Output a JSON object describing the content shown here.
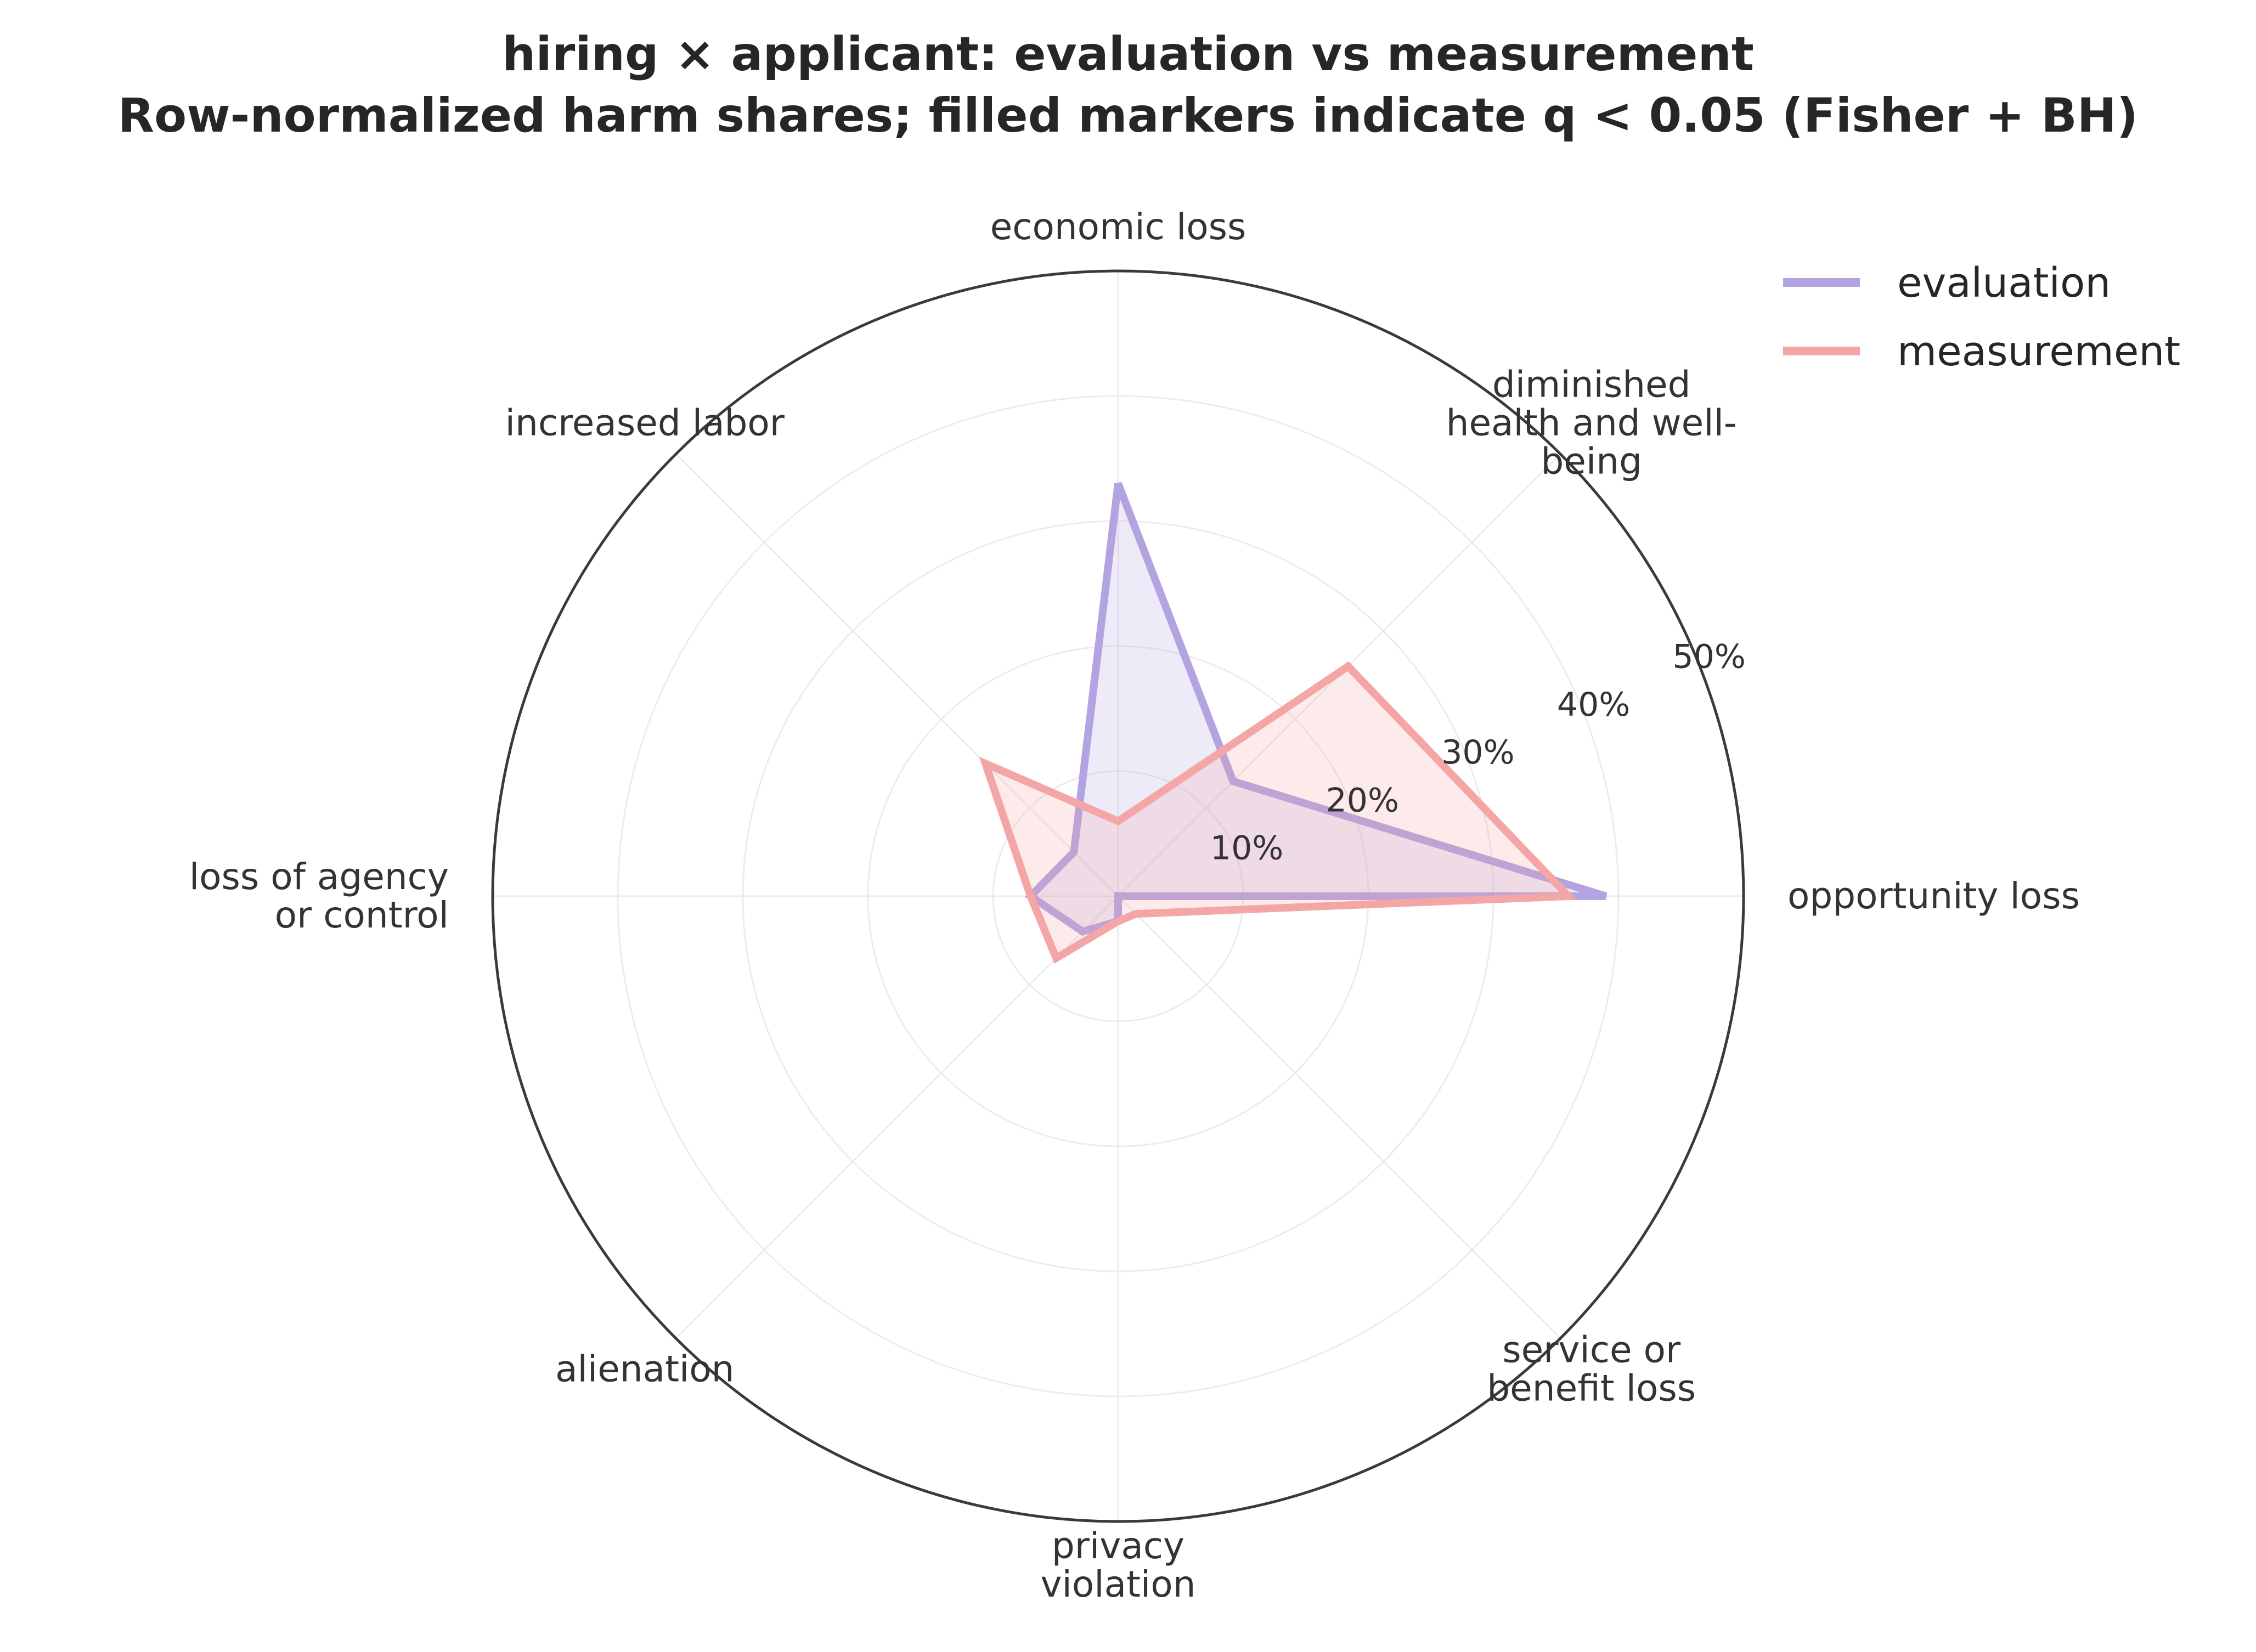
{
  "title_line1": "hiring × applicant: evaluation vs measurement",
  "title_line2": "Row-normalized harm shares; filled markers indicate q < 0.05 (Fisher + BH)",
  "chart_data": {
    "type": "radar",
    "categories": [
      "opportunity loss",
      "diminished\nhealth and well-\nbeing",
      "economic loss",
      "increased labor",
      "loss of agency\nor control",
      "alienation",
      "privacy\nviolation",
      "service or\nbenefit loss"
    ],
    "series": [
      {
        "name": "evaluation",
        "color": "#b3a3e0",
        "values": [
          39,
          13,
          33,
          5,
          7,
          4,
          2,
          0
        ]
      },
      {
        "name": "measurement",
        "color": "#f4a6a6",
        "values": [
          36,
          26,
          6,
          15,
          7,
          7,
          2,
          2
        ]
      }
    ],
    "rlim": [
      0,
      50
    ],
    "rticks": [
      10,
      20,
      30,
      40,
      50
    ],
    "rtick_labels": [
      "10%",
      "20%",
      "30%",
      "40%",
      "50%"
    ],
    "grid": true,
    "legend_position": "top-right"
  }
}
